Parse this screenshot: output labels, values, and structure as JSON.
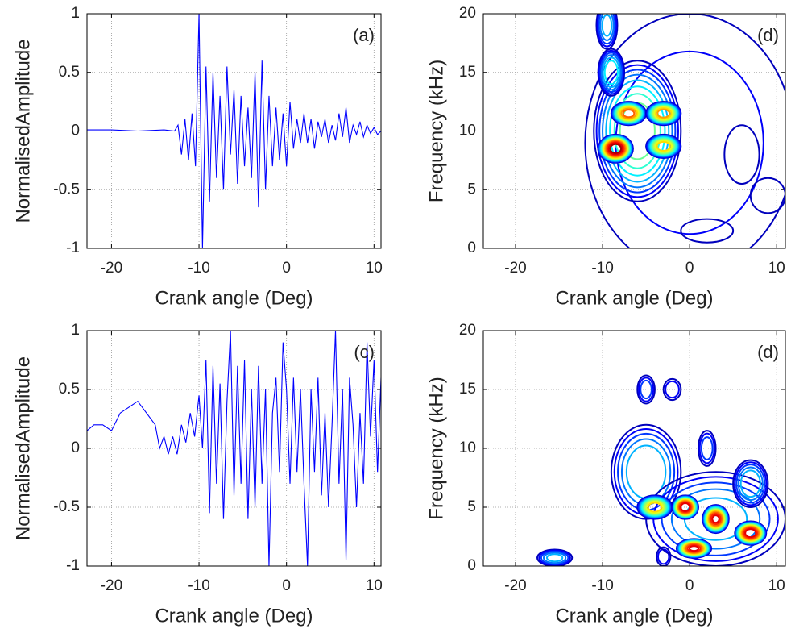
{
  "chart_data": [
    {
      "type": "line",
      "annotation": "(a)",
      "x_label": "Crank angle (Deg)",
      "y_label": "NormalisedAmplitude",
      "xlim": [
        -22.8,
        10.8
      ],
      "ylim": [
        -1,
        1
      ],
      "xticks": [
        -20,
        -10,
        0,
        10
      ],
      "yticks": [
        -1,
        -0.5,
        0,
        0.5,
        1
      ],
      "grid": true,
      "series": [
        {
          "color": "#0000ff",
          "x": [
            -22.8,
            -20,
            -17,
            -14,
            -12.8,
            -12.4,
            -12.0,
            -11.6,
            -11.2,
            -10.8,
            -10.4,
            -10.0,
            -9.6,
            -9.2,
            -8.8,
            -8.4,
            -8.0,
            -7.6,
            -7.2,
            -6.8,
            -6.4,
            -6.0,
            -5.6,
            -5.2,
            -4.8,
            -4.4,
            -4.0,
            -3.6,
            -3.2,
            -2.8,
            -2.4,
            -2.0,
            -1.6,
            -1.2,
            -0.8,
            -0.4,
            0.0,
            0.4,
            0.8,
            1.2,
            1.6,
            2.0,
            2.4,
            2.8,
            3.2,
            3.6,
            4.0,
            4.4,
            4.8,
            5.2,
            5.6,
            6.0,
            6.4,
            6.8,
            7.2,
            7.6,
            8.0,
            8.4,
            8.8,
            9.2,
            9.6,
            10.0,
            10.4,
            10.8
          ],
          "values": [
            0.01,
            0.01,
            0.0,
            0.01,
            0.0,
            0.05,
            -0.2,
            0.1,
            -0.25,
            0.15,
            -0.3,
            1.0,
            -1.0,
            0.55,
            -0.6,
            0.5,
            -0.4,
            0.3,
            -0.5,
            0.55,
            -0.2,
            0.35,
            -0.45,
            0.3,
            -0.3,
            0.2,
            -0.4,
            0.5,
            -0.65,
            0.6,
            -0.5,
            0.3,
            -0.3,
            0.2,
            -0.25,
            0.15,
            -0.3,
            0.25,
            -0.15,
            0.1,
            -0.1,
            0.15,
            -0.1,
            0.1,
            -0.15,
            0.08,
            -0.05,
            0.1,
            -0.1,
            0.05,
            -0.08,
            0.15,
            -0.05,
            0.2,
            -0.1,
            0.05,
            -0.03,
            0.08,
            -0.05,
            0.05,
            -0.02,
            0.03,
            -0.03,
            0.0
          ]
        }
      ]
    },
    {
      "type": "contour",
      "annotation": "(d)",
      "x_label": "Crank angle (Deg)",
      "y_label": "Frequency (kHz)",
      "xlim": [
        -23.7,
        11
      ],
      "ylim": [
        0,
        20
      ],
      "xticks": [
        -20,
        -10,
        0,
        10
      ],
      "yticks": [
        0,
        5,
        10,
        15,
        20
      ],
      "grid": true,
      "level_step": 0.06,
      "blobs": [
        {
          "x": 0,
          "y": 9,
          "rx": 12,
          "ry": 11,
          "peak": 0.12
        },
        {
          "x": 6,
          "y": 8,
          "rx": 2,
          "ry": 2.5,
          "peak": 0.1
        },
        {
          "x": 9,
          "y": 4.5,
          "rx": 2,
          "ry": 1.5,
          "peak": 0.1
        },
        {
          "x": 2,
          "y": 1.5,
          "rx": 3,
          "ry": 1,
          "peak": 0.1
        },
        {
          "x": -6,
          "y": 10,
          "rx": 5,
          "ry": 6,
          "peak": 0.5
        },
        {
          "x": -9,
          "y": 15,
          "rx": 1.5,
          "ry": 2,
          "peak": 0.4
        },
        {
          "x": -9.5,
          "y": 19,
          "rx": 1.2,
          "ry": 2,
          "peak": 0.3
        },
        {
          "x": -7,
          "y": 11.5,
          "rx": 2,
          "ry": 1,
          "peak": 0.8
        },
        {
          "x": -3,
          "y": 11.5,
          "rx": 2,
          "ry": 1,
          "peak": 0.75
        },
        {
          "x": -3,
          "y": 8.7,
          "rx": 2,
          "ry": 1,
          "peak": 0.7
        },
        {
          "x": -8.5,
          "y": 8.5,
          "rx": 2,
          "ry": 1.2,
          "peak": 1.0
        }
      ]
    },
    {
      "type": "line",
      "annotation": "(c)",
      "x_label": "Crank angle (Deg)",
      "y_label": "NormalisedAmplitude",
      "xlim": [
        -22.8,
        10.8
      ],
      "ylim": [
        -1,
        1
      ],
      "xticks": [
        -20,
        -10,
        0,
        10
      ],
      "yticks": [
        -1,
        -0.5,
        0,
        0.5,
        1
      ],
      "grid": true,
      "series": [
        {
          "color": "#0000ff",
          "x": [
            -22.8,
            -22,
            -21,
            -20,
            -19,
            -18,
            -17,
            -16,
            -15,
            -14.5,
            -14,
            -13.5,
            -13,
            -12.5,
            -12,
            -11.5,
            -11,
            -10.5,
            -10,
            -9.6,
            -9.2,
            -8.8,
            -8.4,
            -8.0,
            -7.6,
            -7.2,
            -6.8,
            -6.4,
            -6.0,
            -5.6,
            -5.2,
            -4.8,
            -4.4,
            -4.0,
            -3.6,
            -3.2,
            -2.8,
            -2.4,
            -2.0,
            -1.6,
            -1.2,
            -0.8,
            -0.4,
            0.0,
            0.4,
            0.8,
            1.2,
            1.6,
            2.0,
            2.4,
            2.8,
            3.2,
            3.6,
            4.0,
            4.4,
            4.8,
            5.2,
            5.6,
            6.0,
            6.4,
            6.8,
            7.2,
            7.6,
            8.0,
            8.4,
            8.8,
            9.2,
            9.6,
            10.0,
            10.4,
            10.8
          ],
          "values": [
            0.15,
            0.2,
            0.2,
            0.15,
            0.3,
            0.35,
            0.4,
            0.3,
            0.2,
            0.0,
            0.1,
            -0.05,
            0.1,
            -0.05,
            0.2,
            0.05,
            0.3,
            0.1,
            0.45,
            0.0,
            0.75,
            -0.55,
            0.7,
            -0.3,
            0.55,
            -0.6,
            0.4,
            1.0,
            -0.4,
            0.7,
            -0.3,
            0.75,
            -0.6,
            0.5,
            -0.5,
            0.7,
            -0.3,
            0.5,
            -1.0,
            0.3,
            0.6,
            -0.2,
            0.9,
            0.5,
            -0.3,
            0.6,
            -0.2,
            0.5,
            -0.3,
            -1.0,
            0.5,
            -0.2,
            0.6,
            -0.4,
            0.3,
            -0.5,
            0.2,
            1.0,
            -0.3,
            0.5,
            -0.95,
            0.6,
            0.2,
            -0.5,
            0.3,
            -0.3,
            0.9,
            0.1,
            0.75,
            -0.2,
            0.6
          ]
        }
      ]
    },
    {
      "type": "contour",
      "annotation": "(d)",
      "x_label": "Crank angle (Deg)",
      "y_label": "Frequency (kHz)",
      "xlim": [
        -23.7,
        11
      ],
      "ylim": [
        0,
        20
      ],
      "xticks": [
        -20,
        -10,
        0,
        10
      ],
      "yticks": [
        0,
        5,
        10,
        15,
        20
      ],
      "grid": true,
      "level_step": 0.06,
      "blobs": [
        {
          "x": -15.5,
          "y": 0.7,
          "rx": 2,
          "ry": 0.7,
          "peak": 0.3
        },
        {
          "x": -5,
          "y": 15,
          "rx": 1,
          "ry": 1.2,
          "peak": 0.2
        },
        {
          "x": -2,
          "y": 15,
          "rx": 1,
          "ry": 0.9,
          "peak": 0.15
        },
        {
          "x": -3,
          "y": 0.8,
          "rx": 0.8,
          "ry": 0.8,
          "peak": 0.15
        },
        {
          "x": 2,
          "y": 10,
          "rx": 1,
          "ry": 1.5,
          "peak": 0.2
        },
        {
          "x": -5,
          "y": 8,
          "rx": 4,
          "ry": 4,
          "peak": 0.35
        },
        {
          "x": 3,
          "y": 4,
          "rx": 8,
          "ry": 4,
          "peak": 0.3
        },
        {
          "x": 7,
          "y": 7,
          "rx": 2,
          "ry": 2,
          "peak": 0.35
        },
        {
          "x": -4,
          "y": 5,
          "rx": 2,
          "ry": 1,
          "peak": 0.7
        },
        {
          "x": -0.5,
          "y": 5,
          "rx": 1.5,
          "ry": 1,
          "peak": 0.95
        },
        {
          "x": 3,
          "y": 4,
          "rx": 1.5,
          "ry": 1.2,
          "peak": 0.9
        },
        {
          "x": 7,
          "y": 2.8,
          "rx": 1.8,
          "ry": 1,
          "peak": 0.95
        },
        {
          "x": 0.5,
          "y": 1.5,
          "rx": 2,
          "ry": 0.8,
          "peak": 0.9
        }
      ]
    }
  ]
}
